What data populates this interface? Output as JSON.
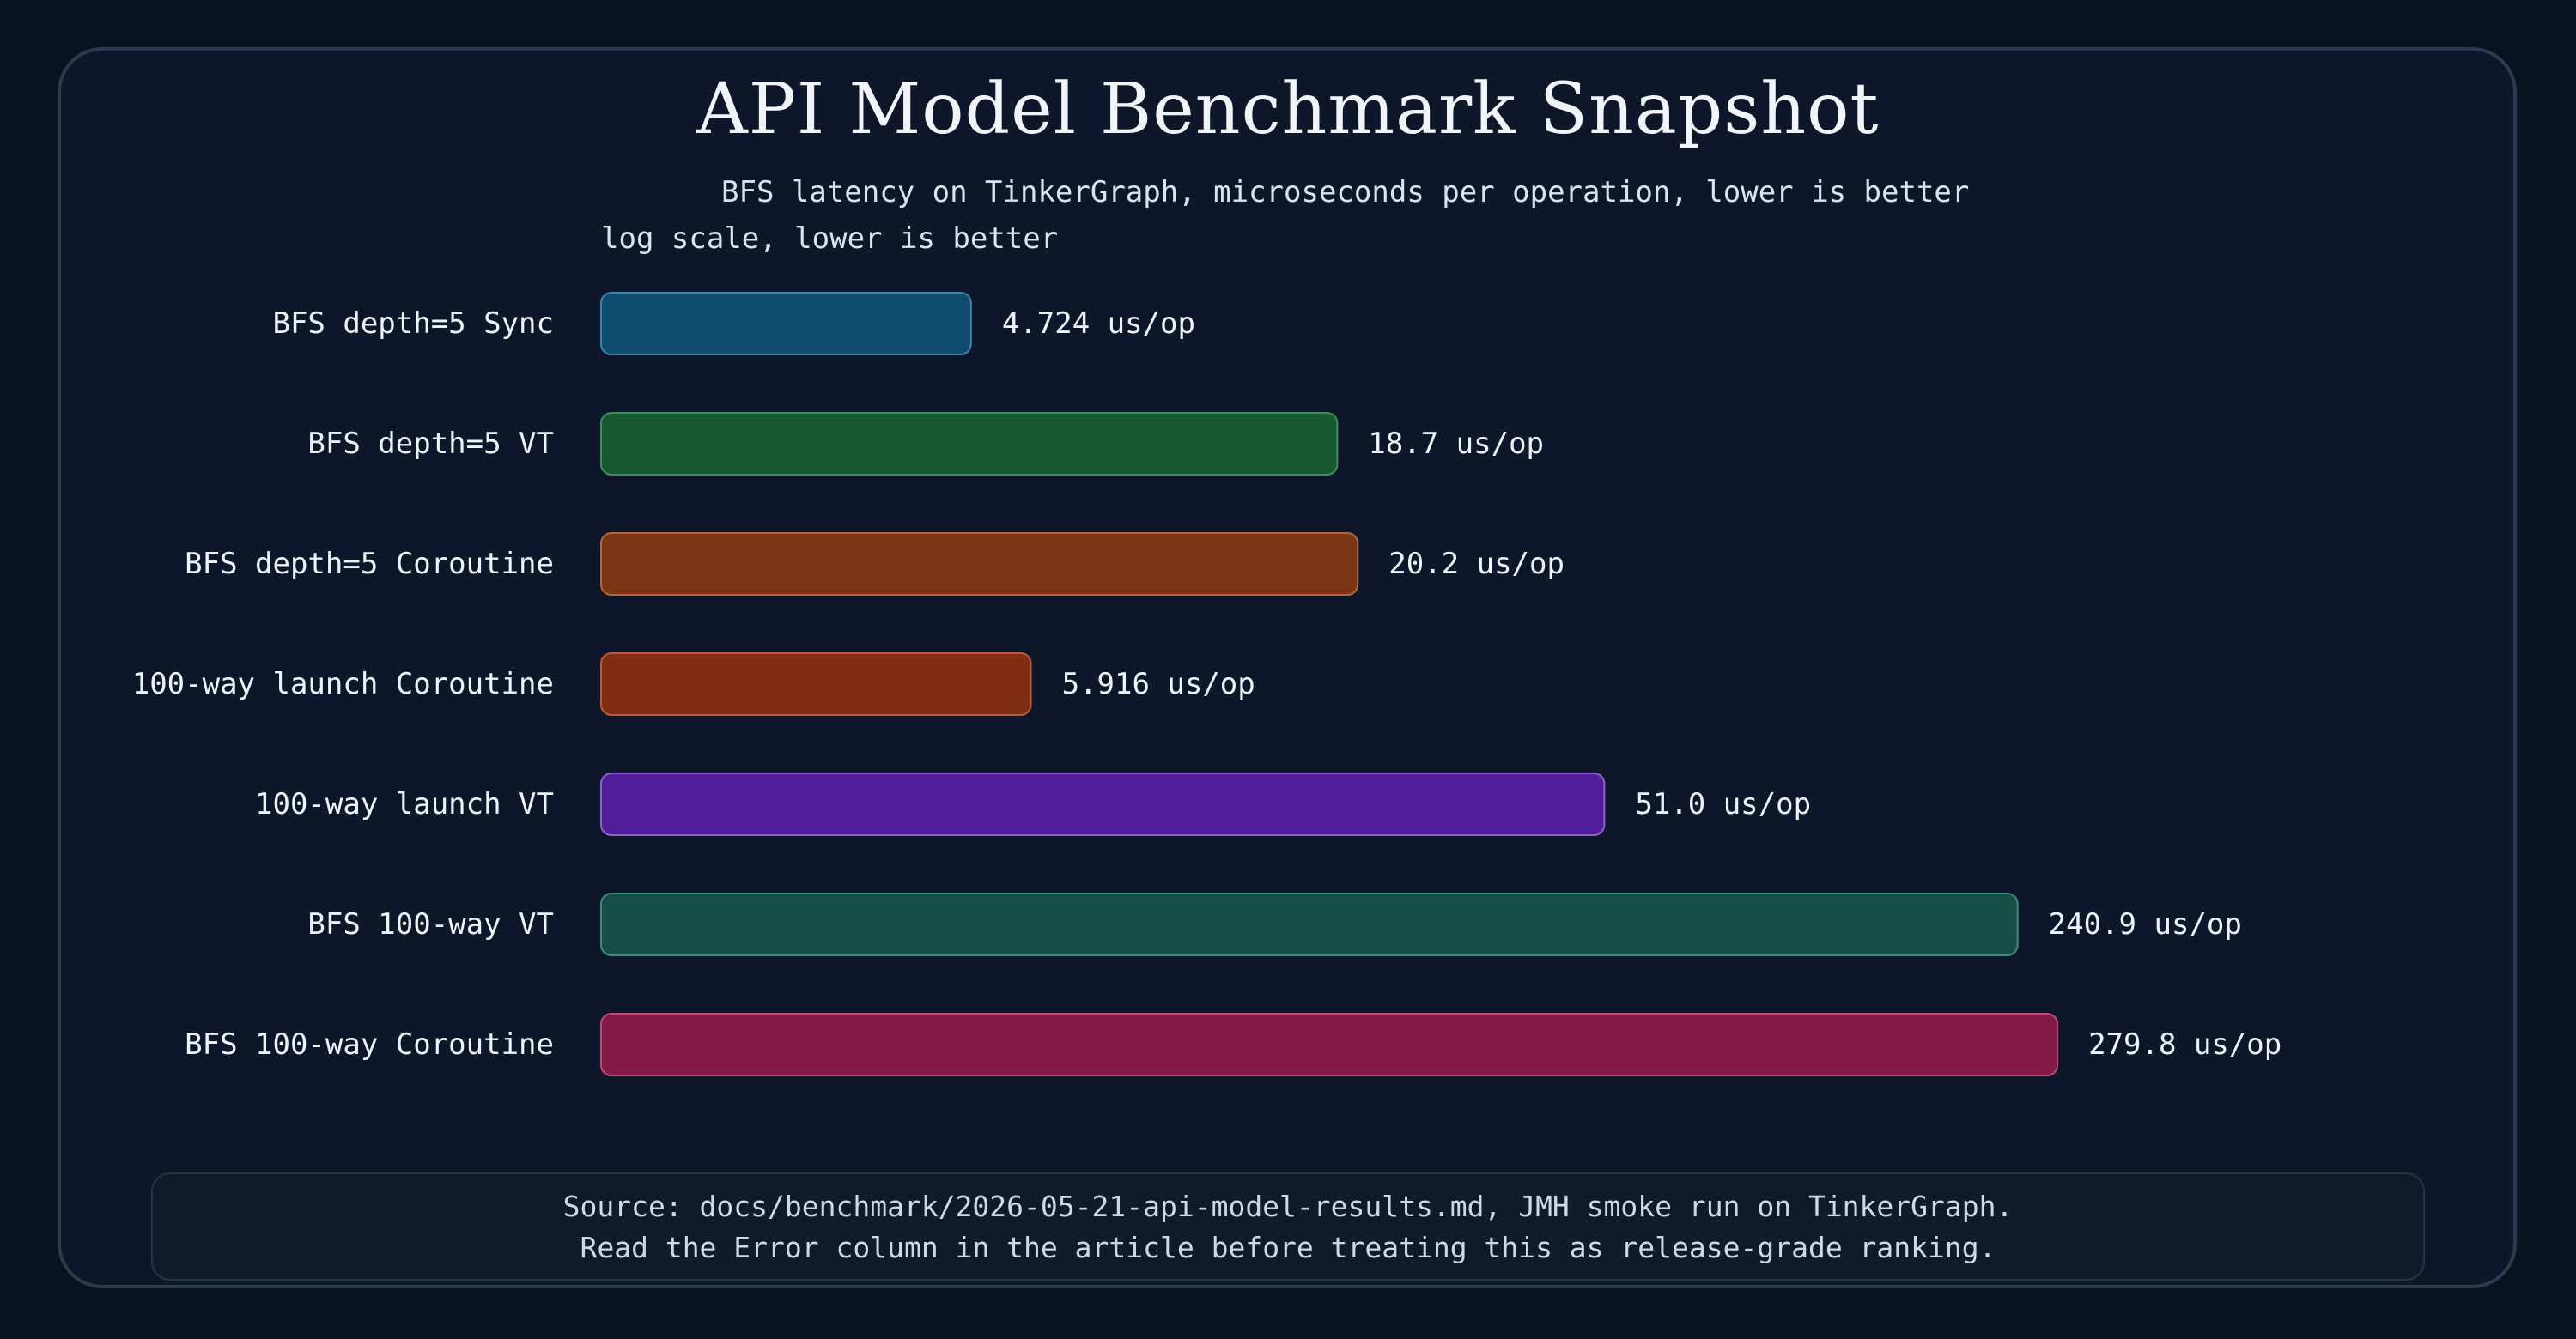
{
  "chart_data": {
    "type": "bar",
    "orientation": "horizontal",
    "title": "API Model Benchmark Snapshot",
    "subtitle": "BFS latency on TinkerGraph, microseconds per operation, lower is better",
    "scale_note": "log scale, lower is better",
    "scale": "log",
    "unit": "us/op",
    "categories": [
      "BFS depth=5 Sync",
      "BFS depth=5 VT",
      "BFS depth=5 Coroutine",
      "100-way launch Coroutine",
      "100-way launch VT",
      "BFS 100-way VT",
      "BFS 100-way Coroutine"
    ],
    "values": [
      4.724,
      18.7,
      20.2,
      5.916,
      51.0,
      240.9,
      279.8
    ],
    "value_labels": [
      "4.724 us/op",
      "18.7 us/op",
      "20.2 us/op",
      "5.916 us/op",
      "51.0 us/op",
      "240.9 us/op",
      "279.8 us/op"
    ],
    "bar_colors": [
      "#0f4c70",
      "#185830",
      "#7c3514",
      "#7f2d13",
      "#4f1e98",
      "#154f46",
      "#821a45"
    ],
    "bar_borders": [
      "#3d84ad",
      "#3d8f56",
      "#b5663a",
      "#ba5a3a",
      "#8c62cf",
      "#3f8a7e",
      "#bf4a7c"
    ],
    "grid": false,
    "legend": false
  },
  "footer": {
    "line1": "Source: docs/benchmark/2026-05-21-api-model-results.md, JMH smoke run on TinkerGraph.",
    "line2": "Read the Error column in the article before treating this as release-grade ranking."
  }
}
